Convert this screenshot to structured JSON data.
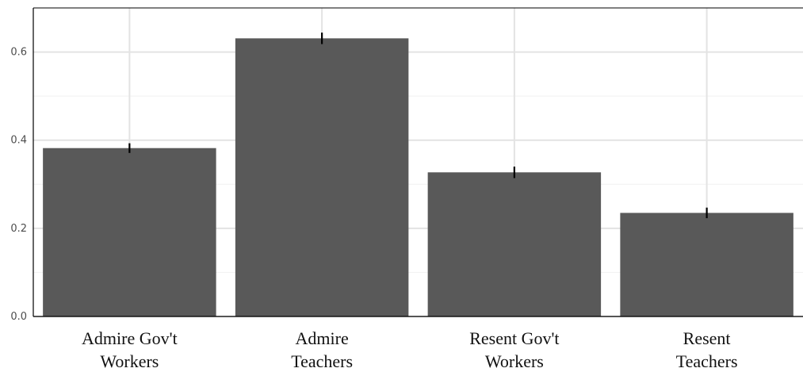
{
  "chart_data": {
    "type": "bar",
    "categories": [
      [
        "Admire Gov't",
        "Workers"
      ],
      [
        "Admire",
        "Teachers"
      ],
      [
        "Resent Gov't",
        "Workers"
      ],
      [
        "Resent",
        "Teachers"
      ]
    ],
    "values": [
      0.382,
      0.631,
      0.327,
      0.235
    ],
    "error": [
      [
        0.371,
        0.393
      ],
      [
        0.618,
        0.644
      ],
      [
        0.314,
        0.34
      ],
      [
        0.223,
        0.247
      ]
    ],
    "ylim": [
      0,
      0.7
    ],
    "yticks": [
      {
        "value": 0.0,
        "label": "0.0"
      },
      {
        "value": 0.2,
        "label": "0.2"
      },
      {
        "value": 0.4,
        "label": "0.4"
      },
      {
        "value": 0.6,
        "label": "0.6"
      }
    ],
    "grid": true,
    "bar_color": "#595959",
    "title": "",
    "xlabel": "",
    "ylabel": ""
  }
}
